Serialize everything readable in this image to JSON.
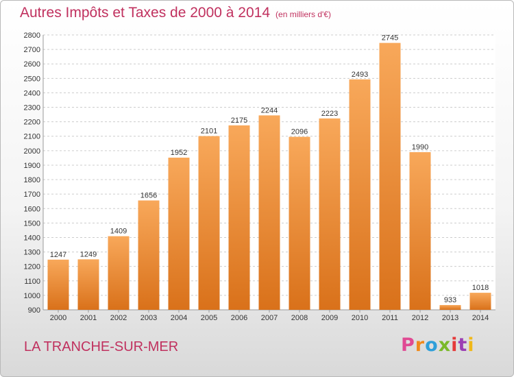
{
  "header": {
    "title": "Autres Impôts et Taxes de 2000 à 2014",
    "subtitle": "(en milliers d'€)"
  },
  "footer": {
    "city": "LA TRANCHE-SUR-MER",
    "logo_letters": [
      "P",
      "r",
      "o",
      "x",
      "i",
      "t",
      "i"
    ]
  },
  "colors": {
    "bar_top": "#f8a85a",
    "bar_bottom": "#d9711a",
    "accent": "#c0305e",
    "grid": "#cccccc"
  },
  "chart_data": {
    "type": "bar",
    "title": "Autres Impôts et Taxes de 2000 à 2014",
    "subtitle": "(en milliers d'€)",
    "categories": [
      "2000",
      "2001",
      "2002",
      "2003",
      "2004",
      "2005",
      "2006",
      "2007",
      "2008",
      "2009",
      "2010",
      "2011",
      "2012",
      "2013",
      "2014"
    ],
    "values": [
      1247,
      1249,
      1409,
      1656,
      1952,
      2101,
      2175,
      2244,
      2096,
      2223,
      2493,
      2745,
      1990,
      933,
      1018
    ],
    "yticks": [
      900,
      1000,
      1100,
      1200,
      1300,
      1400,
      1500,
      1600,
      1700,
      1800,
      1900,
      2000,
      2100,
      2200,
      2300,
      2400,
      2500,
      2600,
      2700,
      2800
    ],
    "ylim": [
      900,
      2800
    ],
    "grid": true,
    "xlabel": "",
    "ylabel": ""
  }
}
